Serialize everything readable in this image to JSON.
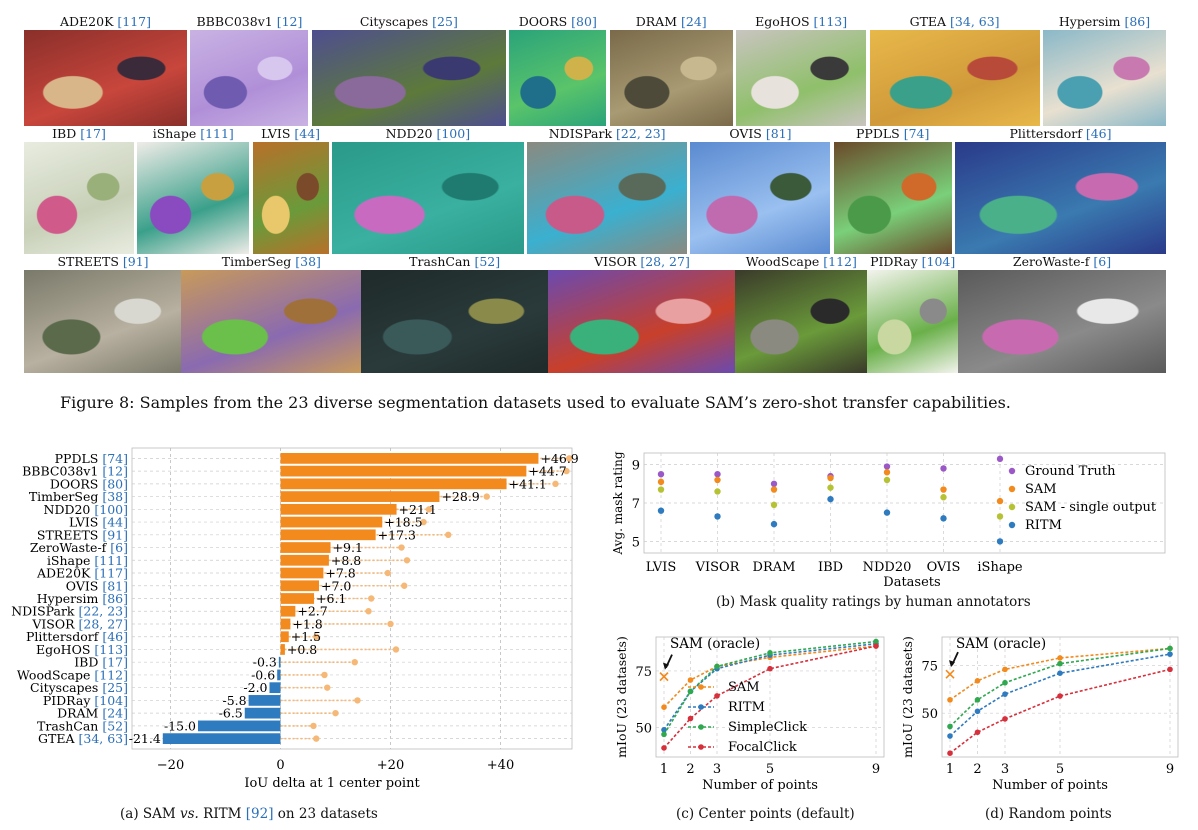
{
  "figure8": {
    "caption": "Figure 8: Samples from the 23 diverse segmentation datasets used to evaluate SAM’s zero-shot transfer capabilities.",
    "rows": [
      [
        {
          "name": "ADE20K",
          "ref": "[117]",
          "colors": [
            "#8a2f2a",
            "#c8463c",
            "#d9b68a",
            "#3b2a3a"
          ]
        },
        {
          "name": "BBBC038v1",
          "ref": "[12]",
          "colors": [
            "#c9b2e3",
            "#b08fd8",
            "#6f5bb0",
            "#d7c7ee"
          ]
        },
        {
          "name": "Cityscapes",
          "ref": "[25]",
          "colors": [
            "#4e4e8f",
            "#5d7a3a",
            "#8a6a9a",
            "#3a3a70"
          ]
        },
        {
          "name": "DOORS",
          "ref": "[80]",
          "colors": [
            "#2aa37a",
            "#5ac46a",
            "#1f6f8a",
            "#d0b24a"
          ]
        },
        {
          "name": "DRAM",
          "ref": "[24]",
          "colors": [
            "#7a6a4a",
            "#a89a72",
            "#4e4a3a",
            "#c8b890"
          ]
        },
        {
          "name": "EgoHOS",
          "ref": "[113]",
          "colors": [
            "#c9c4c0",
            "#8fc06a",
            "#e8e2dc",
            "#3a3a3a"
          ]
        },
        {
          "name": "GTEA",
          "ref": "[34, 63]",
          "colors": [
            "#e8b84a",
            "#d09a3a",
            "#3aa08a",
            "#b84a3a"
          ]
        },
        {
          "name": "Hypersim",
          "ref": "[86]",
          "colors": [
            "#8ab8c8",
            "#e8e0d0",
            "#4aa0b0",
            "#c87ab0"
          ]
        }
      ],
      [
        {
          "name": "IBD",
          "ref": "[17]",
          "colors": [
            "#e8ece0",
            "#c8d0b8",
            "#d05a8a",
            "#9ab07a"
          ]
        },
        {
          "name": "iShape",
          "ref": "[111]",
          "colors": [
            "#f0ece8",
            "#3aa08a",
            "#8a4ac0",
            "#c8a040"
          ]
        },
        {
          "name": "LVIS",
          "ref": "[44]",
          "colors": [
            "#b8702a",
            "#6a9a3a",
            "#e8c86a",
            "#7a4a2a"
          ]
        },
        {
          "name": "NDD20",
          "ref": "[100]",
          "colors": [
            "#2a9a8a",
            "#3ab0a0",
            "#c86ac0",
            "#1f7a70"
          ]
        },
        {
          "name": "NDISPark",
          "ref": "[22, 23]",
          "colors": [
            "#8a8a80",
            "#3ab0d0",
            "#c85a8a",
            "#5a6a5a"
          ]
        },
        {
          "name": "OVIS",
          "ref": "[81]",
          "colors": [
            "#5a8ad0",
            "#9ac0f0",
            "#c06ab0",
            "#3a5a3a"
          ]
        },
        {
          "name": "PPDLS",
          "ref": "[74]",
          "colors": [
            "#6a4a2a",
            "#7ad07a",
            "#4a9a4a",
            "#d06a2a"
          ]
        },
        {
          "name": "Plittersdorf",
          "ref": "[46]",
          "colors": [
            "#2a3a8a",
            "#3a7ab0",
            "#4ab08a",
            "#c86ab0"
          ]
        }
      ],
      [
        {
          "name": "STREETS",
          "ref": "[91]",
          "colors": [
            "#7a7a6a",
            "#b8b0a0",
            "#5a6a4a",
            "#d8d8d0"
          ]
        },
        {
          "name": "TimberSeg",
          "ref": "[38]",
          "colors": [
            "#c89a5a",
            "#8a6ab0",
            "#6ac04a",
            "#a0703a"
          ]
        },
        {
          "name": "TrashCan",
          "ref": "[52]",
          "colors": [
            "#1f2a2a",
            "#2a3a3a",
            "#3a5a5a",
            "#8a8a4a"
          ]
        },
        {
          "name": "VISOR",
          "ref": "[28, 27]",
          "colors": [
            "#6a4ab0",
            "#c8402a",
            "#3ab07a",
            "#e8a0a0"
          ]
        },
        {
          "name": "WoodScape",
          "ref": "[112]",
          "colors": [
            "#3a3a2a",
            "#6a9a3a",
            "#8a8a80",
            "#2a2a2a"
          ]
        },
        {
          "name": "PIDRay",
          "ref": "[104]",
          "colors": [
            "#f4f4ee",
            "#6ab04a",
            "#c8d8a0",
            "#8a8a8a"
          ]
        },
        {
          "name": "ZeroWaste-f",
          "ref": "[6]",
          "colors": [
            "#5a5a5a",
            "#8a8a8a",
            "#c86ab0",
            "#e8e8e8"
          ]
        }
      ]
    ]
  },
  "panel_a": {
    "caption_pre": "(a) SAM ",
    "caption_vs": "vs.",
    "caption_mid": " RITM ",
    "caption_ref": "[92]",
    "caption_post": " on 23 datasets",
    "chart_data": {
      "type": "bar",
      "orientation": "horizontal",
      "xlabel": "IoU delta at 1 center point",
      "xlim": [
        -27,
        53
      ],
      "xticks": [
        -20,
        0,
        20,
        40
      ],
      "xtick_labels": [
        "−20",
        "0",
        "+20",
        "+40"
      ],
      "grid": true,
      "positive_color": "#f28a1e",
      "negative_color": "#2f7bbf",
      "categories": [
        {
          "name": "PPDLS",
          "ref": "[74]",
          "value": 46.9,
          "label": "+46.9",
          "oracle": 52.5
        },
        {
          "name": "BBBC038v1",
          "ref": "[12]",
          "value": 44.7,
          "label": "+44.7",
          "oracle": 52.0
        },
        {
          "name": "DOORS",
          "ref": "[80]",
          "value": 41.1,
          "label": "+41.1",
          "oracle": 50.0
        },
        {
          "name": "TimberSeg",
          "ref": "[38]",
          "value": 28.9,
          "label": "+28.9",
          "oracle": 37.5
        },
        {
          "name": "NDD20",
          "ref": "[100]",
          "value": 21.1,
          "label": "+21.1",
          "oracle": 27.0
        },
        {
          "name": "LVIS",
          "ref": "[44]",
          "value": 18.5,
          "label": "+18.5",
          "oracle": 26.0
        },
        {
          "name": "STREETS",
          "ref": "[91]",
          "value": 17.3,
          "label": "+17.3",
          "oracle": 30.5
        },
        {
          "name": "ZeroWaste-f",
          "ref": "[6]",
          "value": 9.1,
          "label": "+9.1",
          "oracle": 22.0
        },
        {
          "name": "iShape",
          "ref": "[111]",
          "value": 8.8,
          "label": "+8.8",
          "oracle": 23.0
        },
        {
          "name": "ADE20K",
          "ref": "[117]",
          "value": 7.8,
          "label": "+7.8",
          "oracle": 19.5
        },
        {
          "name": "OVIS",
          "ref": "[81]",
          "value": 7.0,
          "label": "+7.0",
          "oracle": 22.5
        },
        {
          "name": "Hypersim",
          "ref": "[86]",
          "value": 6.1,
          "label": "+6.1",
          "oracle": 16.5
        },
        {
          "name": "NDISPark",
          "ref": "[22, 23]",
          "value": 2.7,
          "label": "+2.7",
          "oracle": 16.0
        },
        {
          "name": "VISOR",
          "ref": "[28, 27]",
          "value": 1.8,
          "label": "+1.8",
          "oracle": 20.0
        },
        {
          "name": "Plittersdorf",
          "ref": "[46]",
          "value": 1.5,
          "label": "+1.5",
          "oracle": 6.5
        },
        {
          "name": "EgoHOS",
          "ref": "[113]",
          "value": 0.8,
          "label": "+0.8",
          "oracle": 21.0
        },
        {
          "name": "IBD",
          "ref": "[17]",
          "value": -0.3,
          "label": "-0.3",
          "oracle": 13.5
        },
        {
          "name": "WoodScape",
          "ref": "[112]",
          "value": -0.6,
          "label": "-0.6",
          "oracle": 8.0
        },
        {
          "name": "Cityscapes",
          "ref": "[25]",
          "value": -2.0,
          "label": "-2.0",
          "oracle": 8.5
        },
        {
          "name": "PIDRay",
          "ref": "[104]",
          "value": -5.8,
          "label": "-5.8",
          "oracle": 14.0
        },
        {
          "name": "DRAM",
          "ref": "[24]",
          "value": -6.5,
          "label": "-6.5",
          "oracle": 10.0
        },
        {
          "name": "TrashCan",
          "ref": "[52]",
          "value": -15.0,
          "label": "-15.0",
          "oracle": 6.0
        },
        {
          "name": "GTEA",
          "ref": "[34, 63]",
          "value": -21.4,
          "label": "-21.4",
          "oracle": 6.5
        }
      ]
    }
  },
  "panel_b": {
    "caption": "(b) Mask quality ratings by human annotators",
    "chart_data": {
      "type": "scatter",
      "xlabel": "Datasets",
      "ylabel": "Avg. mask rating",
      "categories": [
        "LVIS",
        "VISOR",
        "DRAM",
        "IBD",
        "NDD20",
        "OVIS",
        "iShape"
      ],
      "ylim": [
        4.5,
        9.5
      ],
      "yticks": [
        5,
        7,
        9
      ],
      "grid": true,
      "legend_position": "right",
      "series": [
        {
          "name": "Ground Truth",
          "color": "#9b59c8",
          "values": [
            8.5,
            8.5,
            8.0,
            8.4,
            8.9,
            8.8,
            9.3
          ]
        },
        {
          "name": "SAM",
          "color": "#f28a1e",
          "values": [
            8.1,
            8.2,
            7.7,
            8.3,
            8.6,
            7.7,
            7.1
          ]
        },
        {
          "name": "SAM - single output",
          "color": "#b5c234",
          "values": [
            7.7,
            7.6,
            6.9,
            7.8,
            8.2,
            7.3,
            6.3
          ]
        },
        {
          "name": "RITM",
          "color": "#2f7bbf",
          "values": [
            6.6,
            6.3,
            5.9,
            7.2,
            6.5,
            6.2,
            5.0
          ]
        }
      ]
    }
  },
  "panel_c": {
    "caption": "(c) Center points (default)",
    "chart_data": {
      "type": "line",
      "xlabel": "Number of points",
      "ylabel": "mIoU (23 datasets)",
      "x": [
        1,
        2,
        3,
        5,
        9
      ],
      "xticks": [
        1,
        2,
        3,
        5,
        9
      ],
      "ylim": [
        37,
        90
      ],
      "yticks": [
        50,
        75
      ],
      "annotation": "SAM (oracle)",
      "oracle_value": 72.5,
      "oracle_color": "#f28a1e",
      "legend_position": "center-right",
      "series": [
        {
          "name": "SAM",
          "color": "#f28a1e",
          "values": [
            59,
            71,
            77,
            81,
            86
          ]
        },
        {
          "name": "RITM",
          "color": "#2f7bbf",
          "values": [
            49,
            66,
            76,
            82,
            87
          ]
        },
        {
          "name": "SimpleClick",
          "color": "#2fa84f",
          "values": [
            47,
            66,
            77,
            83,
            88
          ]
        },
        {
          "name": "FocalClick",
          "color": "#d6303c",
          "values": [
            41,
            54,
            64,
            76,
            86
          ]
        }
      ]
    }
  },
  "panel_d": {
    "caption": "(d) Random points",
    "chart_data": {
      "type": "line",
      "xlabel": "Number of points",
      "ylabel": "mIoU (23 datasets)",
      "x": [
        1,
        2,
        3,
        5,
        9
      ],
      "xticks": [
        1,
        2,
        3,
        5,
        9
      ],
      "ylim": [
        27,
        90
      ],
      "yticks": [
        50,
        75
      ],
      "annotation": "SAM (oracle)",
      "oracle_value": 70.5,
      "oracle_color": "#f28a1e",
      "series": [
        {
          "name": "SAM",
          "color": "#f28a1e",
          "values": [
            57,
            67,
            73,
            79,
            84
          ]
        },
        {
          "name": "RITM",
          "color": "#2f7bbf",
          "values": [
            38,
            51,
            60,
            71,
            81
          ]
        },
        {
          "name": "SimpleClick",
          "color": "#2fa84f",
          "values": [
            43,
            57,
            66,
            76,
            84
          ]
        },
        {
          "name": "FocalClick",
          "color": "#d6303c",
          "values": [
            29,
            40,
            47,
            59,
            73
          ]
        }
      ]
    }
  }
}
